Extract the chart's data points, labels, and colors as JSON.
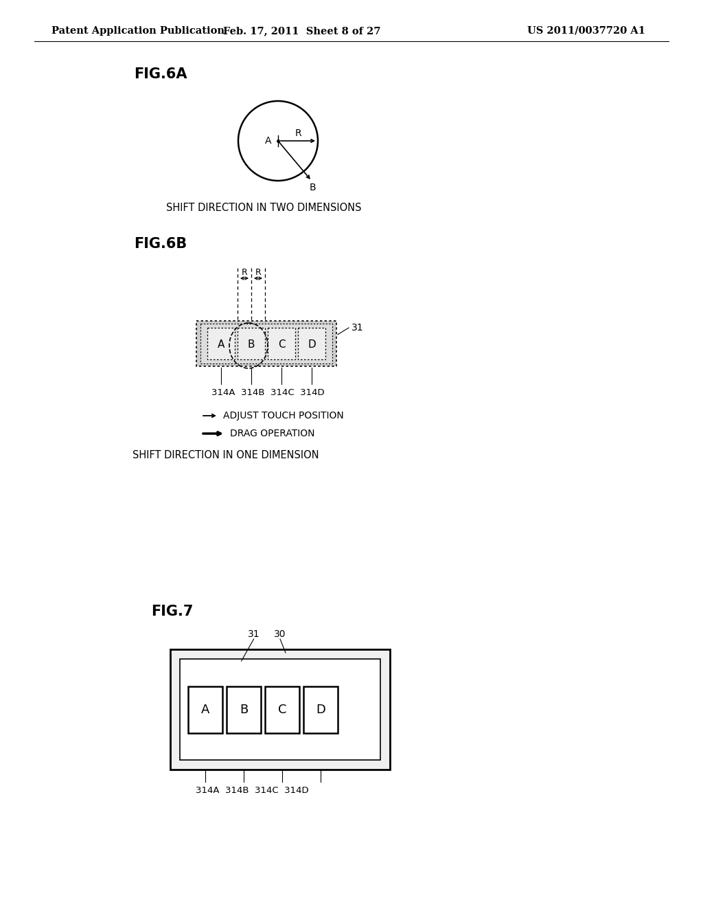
{
  "bg_color": "#ffffff",
  "header_left": "Patent Application Publication",
  "header_mid": "Feb. 17, 2011  Sheet 8 of 27",
  "header_right": "US 2011/0037720 A1",
  "fig6a_label": "FIG.6A",
  "fig6a_caption": "SHIFT DIRECTION IN TWO DIMENSIONS",
  "fig6b_label": "FIG.6B",
  "fig6b_caption3": "SHIFT DIRECTION IN ONE DIMENSION",
  "fig7_label": "FIG.7",
  "keys": [
    "A",
    "B",
    "C",
    "D"
  ],
  "key_labels": "314A  314B  314C  314D",
  "adjust_touch": "ADJUST TOUCH POSITION",
  "drag_op": "DRAG OPERATION"
}
